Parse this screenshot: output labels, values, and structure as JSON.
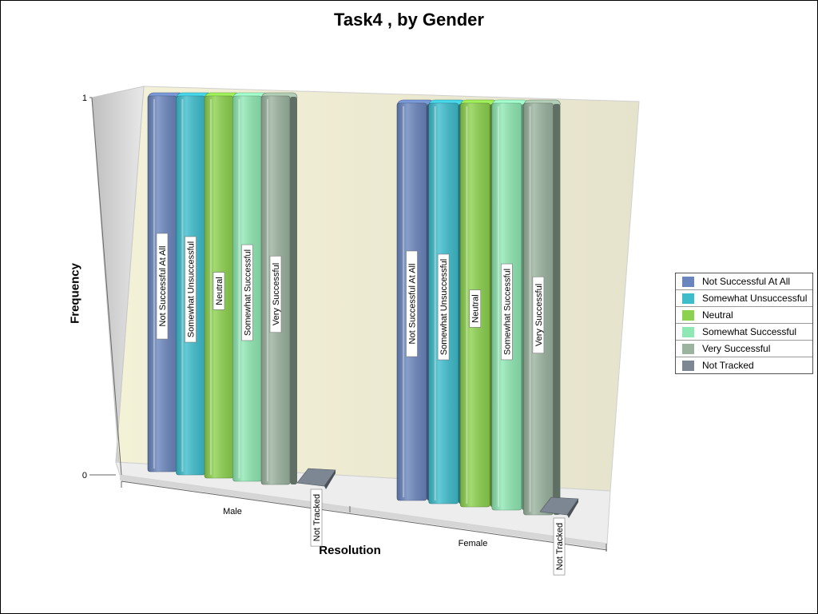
{
  "chart_data": {
    "type": "bar",
    "title": "Task4 , by Gender",
    "xlabel": "Resolution",
    "ylabel": "Frequency",
    "ylim": [
      0,
      1
    ],
    "yticks": [
      "0",
      "1"
    ],
    "categories": [
      "Male",
      "Female"
    ],
    "series": [
      {
        "name": "Not Successful At All",
        "values": [
          1,
          1
        ],
        "color": "#6a85bd"
      },
      {
        "name": "Somewhat Unsuccessful",
        "values": [
          1,
          1
        ],
        "color": "#3dbdcc"
      },
      {
        "name": "Neutral",
        "values": [
          1,
          1
        ],
        "color": "#8cd24e"
      },
      {
        "name": "Somewhat Successful",
        "values": [
          1,
          1
        ],
        "color": "#8fe8b3"
      },
      {
        "name": "Very Successful",
        "values": [
          1,
          1
        ],
        "color": "#9bb39f"
      },
      {
        "name": "Not Tracked",
        "values": [
          0,
          0
        ],
        "color": "#7d8793"
      }
    ],
    "legend_position": "right",
    "bar_labels_show": "series name"
  }
}
